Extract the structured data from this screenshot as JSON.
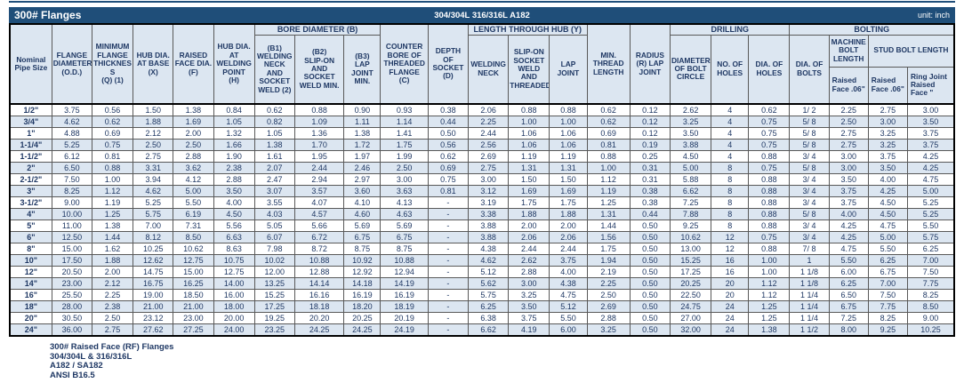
{
  "titlebar": {
    "title": "300# Flanges",
    "material": "304/304L 316/316L A182",
    "unit": "unit: inch"
  },
  "colors": {
    "header_bar": "#1f4e79",
    "header_fill": "#dce6f1",
    "text_ink": "#1f3864",
    "grid_line": "#595959"
  },
  "header": {
    "nominal": "Nominal\nPipe Size",
    "od": "FLANGE\nDIAMETER\n(O.D.)",
    "thickness": "MINIMUM\nFLANGE\nTHICKNES\nS\n(Q) (1)",
    "hub_base": "HUB DIA.\nAT BASE\n(X)",
    "raised_face": "RAISED\nFACE DIA.\n(F)",
    "hub_weld": "HUB DIA.\nAT\nWELDING\nPOINT\n(H)",
    "bore_group": "BORE DIAMETER (B)",
    "b1": "(B1)\nWELDING\nNECK AND\nSOCKET\nWELD (2)",
    "b2": "(B2)\nSLIP-ON AND\nSOCKET\nWELD MIN.",
    "b3": "(B3)\nLAP JOINT\nMIN.",
    "counter_bore": "COUNTER\nBORE OF\nTHREADED\nFLANGE\n(C)",
    "depth_socket": "DEPTH OF\nSOCKET\n(D)",
    "length_group": "LENGTH THROUGH HUB (Y)",
    "welding_neck": "WELDING\nNECK",
    "slip_on": "SLIP-ON\nSOCKET\nWELD\nAND\nTHREADED",
    "lap_joint": "LAP JOINT",
    "min_thread": "MIN.\nTHREAD\nLENGTH",
    "radius": "RADIUS\n(R) LAP\nJOINT",
    "drilling_group": "DRILLING",
    "bolt_circle": "DIAMETER\nOF BOLT\nCIRCLE",
    "no_holes": "NO. OF\nHOLES",
    "dia_holes": "DIA. OF\nHOLES",
    "bolting_group": "BOLTING",
    "dia_bolts": "DIA. OF\nBOLTS",
    "machine_bolt": "MACHINE\nBOLT\nLENGTH",
    "stud_bolt": "STUD BOLT LENGTH",
    "machine_raised": "Raised\nFace .06\"",
    "stud_raised": "Raised\nFace .06\"",
    "ring_joint": "Ring Joint\nRaised\nFace \""
  },
  "rows": [
    [
      "1/2\"",
      "3.75",
      "0.56",
      "1.50",
      "1.38",
      "0.84",
      "0.62",
      "0.88",
      "0.90",
      "0.93",
      "0.38",
      "2.06",
      "0.88",
      "0.88",
      "0.62",
      "0.12",
      "2.62",
      "4",
      "0.62",
      "1/ 2",
      "2.25",
      "2.75",
      "3.00"
    ],
    [
      "3/4\"",
      "4.62",
      "0.62",
      "1.88",
      "1.69",
      "1.05",
      "0.82",
      "1.09",
      "1.11",
      "1.14",
      "0.44",
      "2.25",
      "1.00",
      "1.00",
      "0.62",
      "0.12",
      "3.25",
      "4",
      "0.75",
      "5/ 8",
      "2.50",
      "3.00",
      "3.50"
    ],
    [
      "1\"",
      "4.88",
      "0.69",
      "2.12",
      "2.00",
      "1.32",
      "1.05",
      "1.36",
      "1.38",
      "1.41",
      "0.50",
      "2.44",
      "1.06",
      "1.06",
      "0.69",
      "0.12",
      "3.50",
      "4",
      "0.75",
      "5/ 8",
      "2.75",
      "3.25",
      "3.75"
    ],
    [
      "1-1/4\"",
      "5.25",
      "0.75",
      "2.50",
      "2.50",
      "1.66",
      "1.38",
      "1.70",
      "1.72",
      "1.75",
      "0.56",
      "2.56",
      "1.06",
      "1.06",
      "0.81",
      "0.19",
      "3.88",
      "4",
      "0.75",
      "5/ 8",
      "2.75",
      "3.25",
      "3.75"
    ],
    [
      "1-1/2\"",
      "6.12",
      "0.81",
      "2.75",
      "2.88",
      "1.90",
      "1.61",
      "1.95",
      "1.97",
      "1.99",
      "0.62",
      "2.69",
      "1.19",
      "1.19",
      "0.88",
      "0.25",
      "4.50",
      "4",
      "0.88",
      "3/ 4",
      "3.00",
      "3.75",
      "4.25"
    ],
    [
      "2\"",
      "6.50",
      "0.88",
      "3.31",
      "3.62",
      "2.38",
      "2.07",
      "2.44",
      "2.46",
      "2.50",
      "0.69",
      "2.75",
      "1.31",
      "1.31",
      "1.00",
      "0.31",
      "5.00",
      "8",
      "0.75",
      "5/ 8",
      "3.00",
      "3.50",
      "4.25"
    ],
    [
      "2-1/2\"",
      "7.50",
      "1.00",
      "3.94",
      "4.12",
      "2.88",
      "2.47",
      "2.94",
      "2.97",
      "3.00",
      "0.75",
      "3.00",
      "1.50",
      "1.50",
      "1.12",
      "0.31",
      "5.88",
      "8",
      "0.88",
      "3/ 4",
      "3.50",
      "4.00",
      "4.75"
    ],
    [
      "3\"",
      "8.25",
      "1.12",
      "4.62",
      "5.00",
      "3.50",
      "3.07",
      "3.57",
      "3.60",
      "3.63",
      "0.81",
      "3.12",
      "1.69",
      "1.69",
      "1.19",
      "0.38",
      "6.62",
      "8",
      "0.88",
      "3/ 4",
      "3.75",
      "4.25",
      "5.00"
    ],
    [
      "3-1/2\"",
      "9.00",
      "1.19",
      "5.25",
      "5.50",
      "4.00",
      "3.55",
      "4.07",
      "4.10",
      "4.13",
      "-",
      "3.19",
      "1.75",
      "1.75",
      "1.25",
      "0.38",
      "7.25",
      "8",
      "0.88",
      "3/ 4",
      "3.75",
      "4.50",
      "5.25"
    ],
    [
      "4\"",
      "10.00",
      "1.25",
      "5.75",
      "6.19",
      "4.50",
      "4.03",
      "4.57",
      "4.60",
      "4.63",
      "-",
      "3.38",
      "1.88",
      "1.88",
      "1.31",
      "0.44",
      "7.88",
      "8",
      "0.88",
      "5/ 8",
      "4.00",
      "4.50",
      "5.25"
    ],
    [
      "5\"",
      "11.00",
      "1.38",
      "7.00",
      "7.31",
      "5.56",
      "5.05",
      "5.66",
      "5.69",
      "5.69",
      "-",
      "3.88",
      "2.00",
      "2.00",
      "1.44",
      "0.50",
      "9.25",
      "8",
      "0.88",
      "3/ 4",
      "4.25",
      "4.75",
      "5.50"
    ],
    [
      "6\"",
      "12.50",
      "1.44",
      "8.12",
      "8.50",
      "6.63",
      "6.07",
      "6.72",
      "6.75",
      "6.75",
      "-",
      "3.88",
      "2.06",
      "2.06",
      "1.56",
      "0.50",
      "10.62",
      "12",
      "0.75",
      "3/ 4",
      "4.25",
      "5.00",
      "5.75"
    ],
    [
      "8\"",
      "15.00",
      "1.62",
      "10.25",
      "10.62",
      "8.63",
      "7.98",
      "8.72",
      "8.75",
      "8.75",
      "-",
      "4.38",
      "2.44",
      "2.44",
      "1.75",
      "0.50",
      "13.00",
      "12",
      "0.88",
      "7/ 8",
      "4.75",
      "5.50",
      "6.25"
    ],
    [
      "10\"",
      "17.50",
      "1.88",
      "12.62",
      "12.75",
      "10.75",
      "10.02",
      "10.88",
      "10.92",
      "10.88",
      "-",
      "4.62",
      "2.62",
      "3.75",
      "1.94",
      "0.50",
      "15.25",
      "16",
      "1.00",
      "1",
      "5.50",
      "6.25",
      "7.00"
    ],
    [
      "12\"",
      "20.50",
      "2.00",
      "14.75",
      "15.00",
      "12.75",
      "12.00",
      "12.88",
      "12.92",
      "12.94",
      "-",
      "5.12",
      "2.88",
      "4.00",
      "2.19",
      "0.50",
      "17.25",
      "16",
      "1.00",
      "1 1/8",
      "6.00",
      "6.75",
      "7.50"
    ],
    [
      "14\"",
      "23.00",
      "2.12",
      "16.75",
      "16.25",
      "14.00",
      "13.25",
      "14.14",
      "14.18",
      "14.19",
      "-",
      "5.62",
      "3.00",
      "4.38",
      "2.25",
      "0.50",
      "20.25",
      "20",
      "1.12",
      "1 1/8",
      "6.25",
      "7.00",
      "7.75"
    ],
    [
      "16\"",
      "25.50",
      "2.25",
      "19.00",
      "18.50",
      "16.00",
      "15.25",
      "16.16",
      "16.19",
      "16.19",
      "-",
      "5.75",
      "3.25",
      "4.75",
      "2.50",
      "0.50",
      "22.50",
      "20",
      "1.12",
      "1 1/4",
      "6.50",
      "7.50",
      "8.25"
    ],
    [
      "18\"",
      "28.00",
      "2.38",
      "21.00",
      "21.00",
      "18.00",
      "17.25",
      "18.18",
      "18.20",
      "18.19",
      "-",
      "6.25",
      "3.50",
      "5.12",
      "2.69",
      "0.50",
      "24.75",
      "24",
      "1.25",
      "1 1/4",
      "6.75",
      "7.75",
      "8.50"
    ],
    [
      "20\"",
      "30.50",
      "2.50",
      "23.12",
      "23.00",
      "20.00",
      "19.25",
      "20.20",
      "20.25",
      "20.19",
      "-",
      "6.38",
      "3.75",
      "5.50",
      "2.88",
      "0.50",
      "27.00",
      "24",
      "1.25",
      "1 1/4",
      "7.25",
      "8.25",
      "9.00"
    ],
    [
      "24\"",
      "36.00",
      "2.75",
      "27.62",
      "27.25",
      "24.00",
      "23.25",
      "24.25",
      "24.25",
      "24.19",
      "-",
      "6.62",
      "4.19",
      "6.00",
      "3.25",
      "0.50",
      "32.00",
      "24",
      "1.38",
      "1 1/2",
      "8.00",
      "9.25",
      "10.25"
    ]
  ],
  "notes": [
    "300# Raised Face (RF) Flanges",
    "304/304L & 316/316L",
    "A182 / SA182",
    "ANSI B16.5"
  ]
}
